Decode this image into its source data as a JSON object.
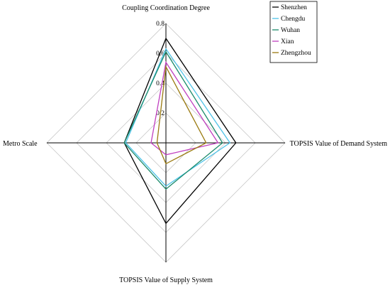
{
  "chart_data": {
    "type": "radar",
    "axes": [
      "Coupling Coordination Degree",
      "TOPSIS Value of Demand System",
      "TOPSIS Value of Supply System",
      "Metro Scale"
    ],
    "rlim": [
      0,
      0.8
    ],
    "ticks": [
      {
        "value": 0.2,
        "label": "0.2"
      },
      {
        "value": 0.4,
        "label": "0.4"
      },
      {
        "value": 0.6,
        "label": "0.6"
      },
      {
        "value": 0.8,
        "label": "0.8"
      }
    ],
    "grid": true,
    "legend_position": "top-right",
    "series": [
      {
        "name": "Shenzhen",
        "color": "#000000",
        "values": [
          0.7,
          0.47,
          0.54,
          0.28
        ]
      },
      {
        "name": "Chengdu",
        "color": "#4fc3e8",
        "values": [
          0.63,
          0.43,
          0.29,
          0.27
        ]
      },
      {
        "name": "Wuhan",
        "color": "#1a8a6a",
        "values": [
          0.61,
          0.38,
          0.31,
          0.28
        ]
      },
      {
        "name": "Xian",
        "color": "#c040c0",
        "values": [
          0.54,
          0.35,
          0.08,
          0.1
        ]
      },
      {
        "name": "Zhengzhou",
        "color": "#9a7a10",
        "values": [
          0.51,
          0.27,
          0.14,
          0.06
        ]
      }
    ]
  }
}
